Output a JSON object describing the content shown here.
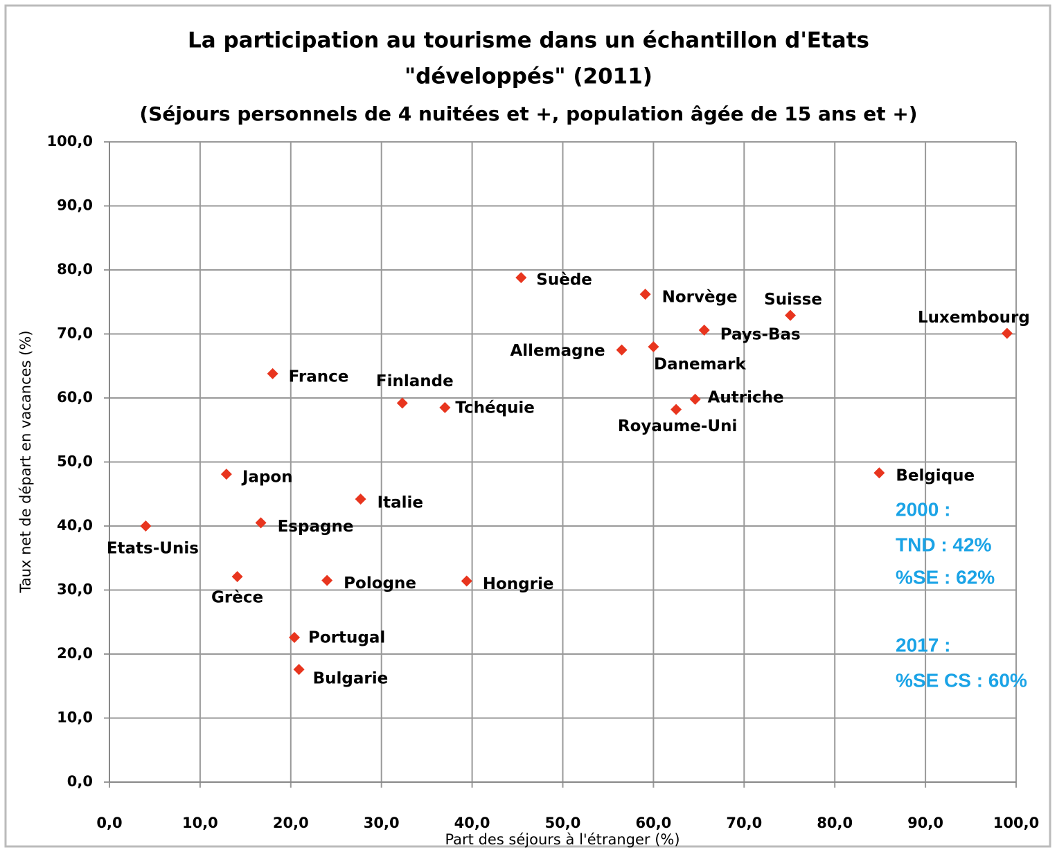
{
  "chart_data": {
    "type": "scatter",
    "title": "La participation au tourisme dans un échantillon d'Etats",
    "title_line2": "\"développés\" (2011)",
    "subtitle": "(Séjours personnels de 4 nuitées et +, population âgée de 15 ans et +)",
    "x_label": "Part des séjours à l'étranger (%)",
    "y_label": "Taux net de départ en vacances (%)",
    "xlim": [
      0,
      100
    ],
    "ylim": [
      0,
      100
    ],
    "xticks": [
      {
        "value": 0,
        "label": "0,0"
      },
      {
        "value": 10,
        "label": "10,0"
      },
      {
        "value": 20,
        "label": "20,0"
      },
      {
        "value": 30,
        "label": "30,0"
      },
      {
        "value": 40,
        "label": "40,0"
      },
      {
        "value": 50,
        "label": "50,0"
      },
      {
        "value": 60,
        "label": "60,0"
      },
      {
        "value": 70,
        "label": "70,0"
      },
      {
        "value": 80,
        "label": "80,0"
      },
      {
        "value": 90,
        "label": "90,0"
      },
      {
        "value": 100,
        "label": "100,0"
      }
    ],
    "yticks": [
      {
        "value": 0,
        "label": "0,0"
      },
      {
        "value": 10,
        "label": "10,0"
      },
      {
        "value": 20,
        "label": "20,0"
      },
      {
        "value": 30,
        "label": "30,0"
      },
      {
        "value": 40,
        "label": "40,0"
      },
      {
        "value": 50,
        "label": "50,0"
      },
      {
        "value": 60,
        "label": "60,0"
      },
      {
        "value": 70,
        "label": "70,0"
      },
      {
        "value": 80,
        "label": "80,0"
      },
      {
        "value": 90,
        "label": "90,0"
      },
      {
        "value": 100,
        "label": "100,0"
      }
    ],
    "grid": true,
    "series": [
      {
        "color": "#e8351e",
        "labels": [
          "Etats-Unis",
          "Japon",
          "Grèce",
          "Espagne",
          "France",
          "Portugal",
          "Bulgarie",
          "Pologne",
          "Italie",
          "Finlande",
          "Tchéquie",
          "Hongrie",
          "Suède",
          "Allemagne",
          "Norvège",
          "Danemark",
          "Royaume-Uni",
          "Autriche",
          "Pays-Bas",
          "Suisse",
          "Belgique",
          "Luxembourg"
        ],
        "x": [
          4.0,
          12.9,
          14.1,
          16.7,
          18.0,
          20.4,
          20.9,
          24.0,
          27.7,
          32.3,
          37.0,
          39.4,
          45.4,
          56.5,
          59.1,
          60.0,
          62.5,
          64.6,
          65.6,
          75.1,
          84.9,
          99.0
        ],
        "values": [
          40.0,
          48.1,
          32.1,
          40.5,
          63.8,
          22.6,
          17.6,
          31.5,
          44.2,
          59.2,
          58.5,
          31.4,
          78.8,
          67.5,
          76.2,
          68.0,
          58.2,
          59.8,
          70.6,
          72.9,
          48.3,
          70.1
        ]
      }
    ],
    "annotations": [
      "2000 :",
      "TND : 42%",
      "%SE : 62%",
      "2017 :",
      "%SE CS : 60%"
    ],
    "annotation_color": "#1aa3e6"
  }
}
